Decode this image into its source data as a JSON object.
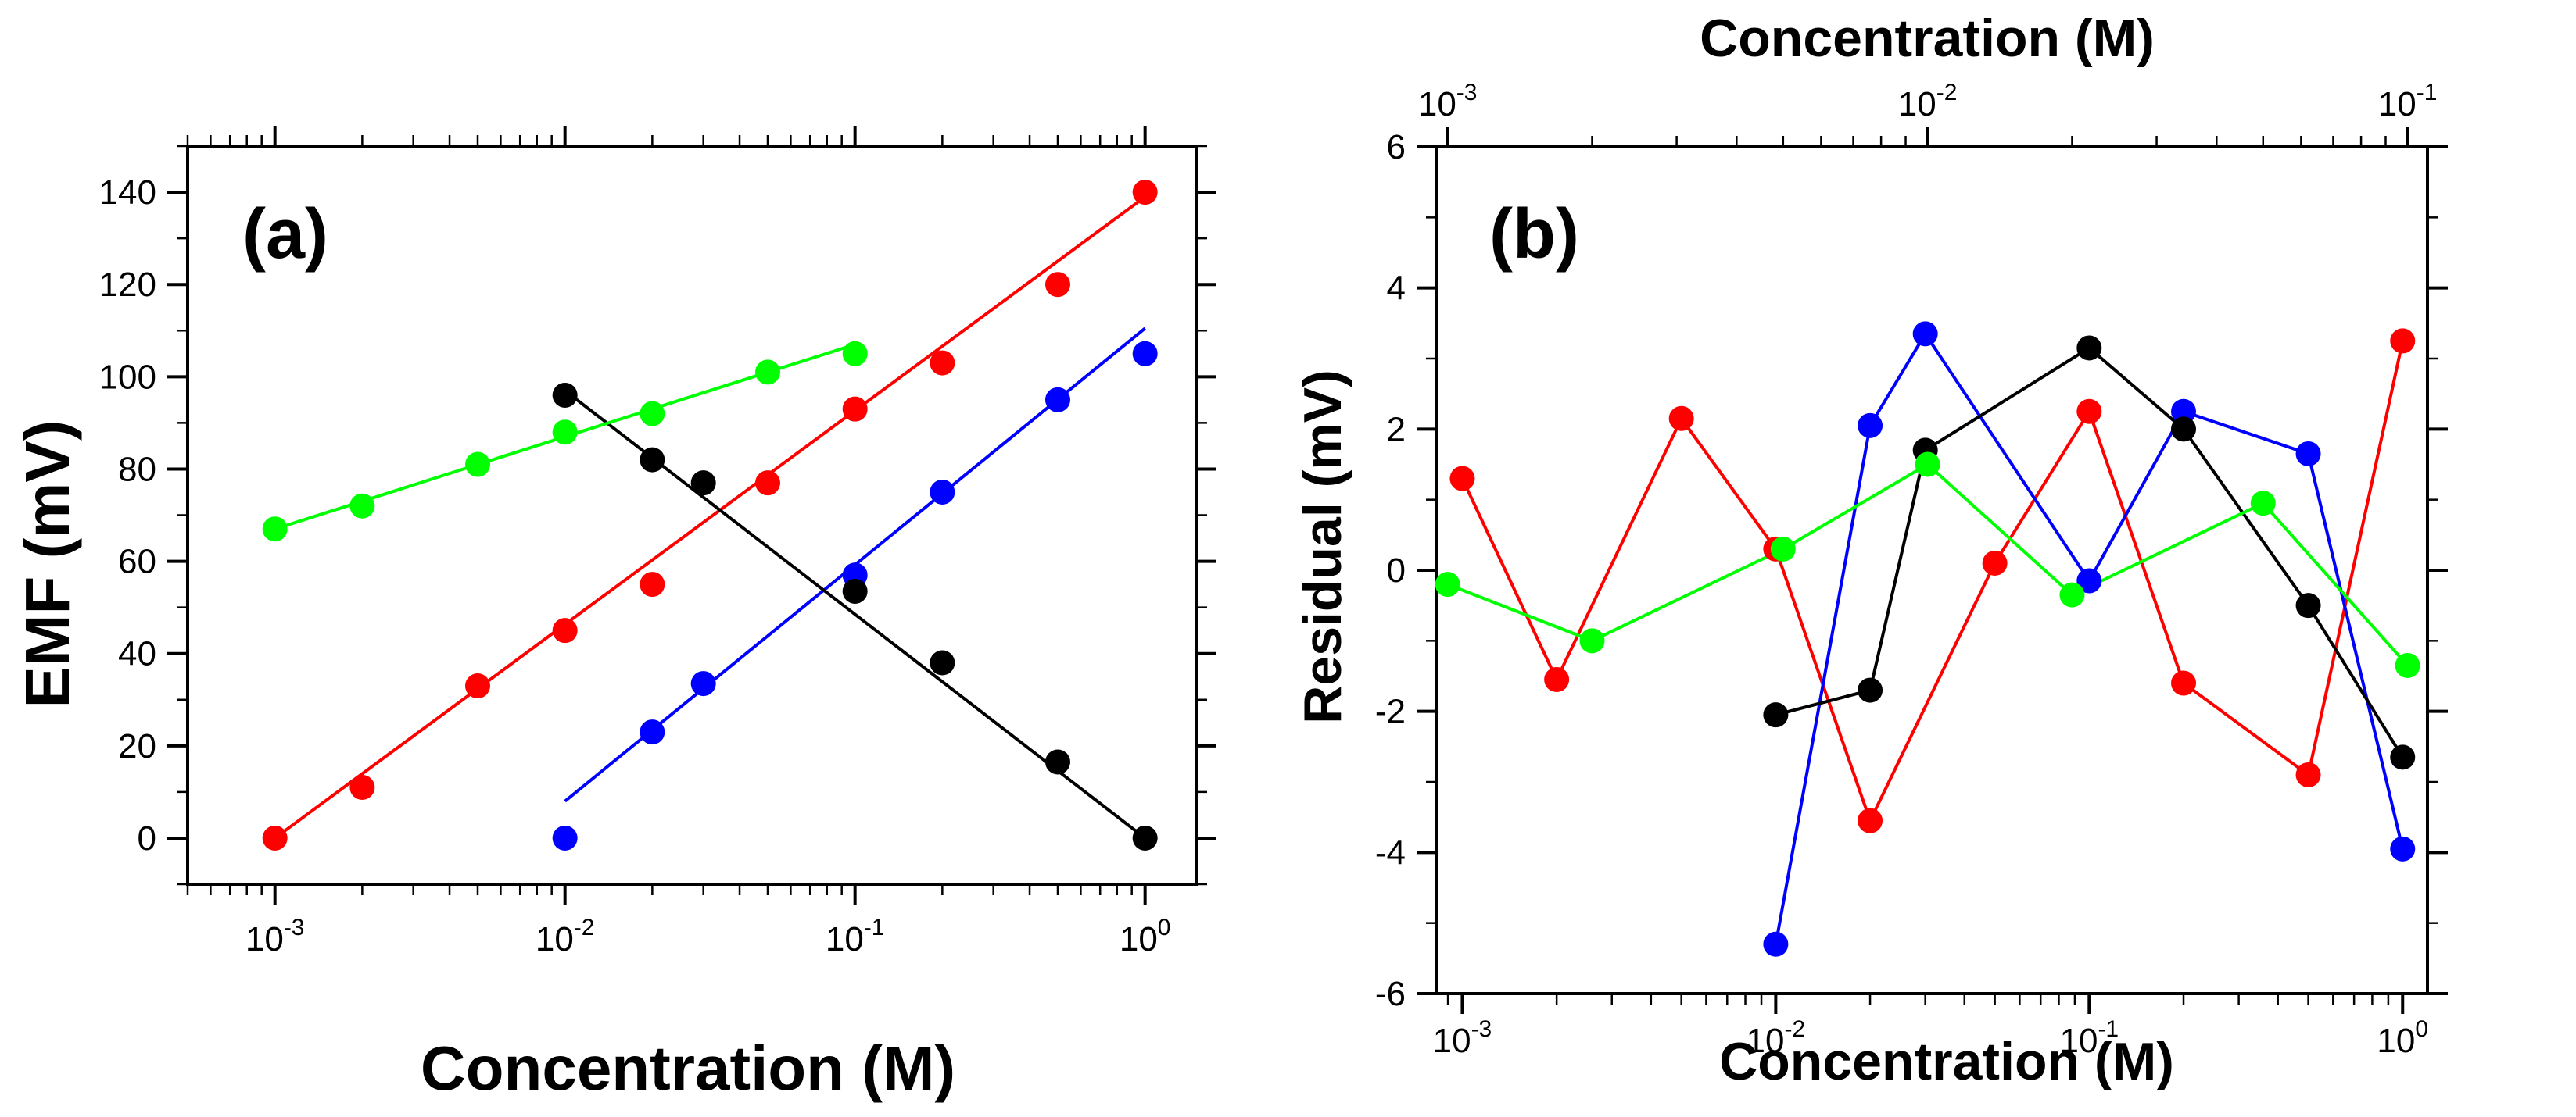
{
  "chart_data": [
    {
      "type": "scatter",
      "panel_label": "(a)",
      "title": "",
      "xlabel": "Concentration (M)",
      "ylabel": "EMF (mV)",
      "xscale": "log",
      "xlim": [
        0.0005,
        1.5
      ],
      "ylim": [
        -10,
        150
      ],
      "yticks": [
        0,
        20,
        40,
        60,
        80,
        100,
        120,
        140
      ],
      "xticks": [
        0.001,
        0.01,
        0.1,
        1
      ],
      "xtick_base": "10",
      "xtick_exponents": [
        "-3",
        "-2",
        "-1",
        "0"
      ],
      "series": [
        {
          "name": "red",
          "color": "#ff0000",
          "x": [
            0.001,
            0.002,
            0.005,
            0.01,
            0.02,
            0.05,
            0.1,
            0.2,
            0.5,
            1
          ],
          "y": [
            0,
            11,
            33,
            45,
            55,
            77,
            93,
            103,
            120,
            140
          ],
          "fit": {
            "x": [
              0.001,
              1
            ],
            "y": [
              0,
              139
            ]
          }
        },
        {
          "name": "blue",
          "color": "#0000ff",
          "x": [
            0.01,
            0.02,
            0.03,
            0.1,
            0.2,
            0.5,
            1
          ],
          "y": [
            0,
            23,
            33.5,
            57,
            75,
            95,
            105
          ],
          "fit": {
            "x": [
              0.01,
              1
            ],
            "y": [
              8,
              110.5
            ]
          }
        },
        {
          "name": "black",
          "color": "#000000",
          "x": [
            0.01,
            0.02,
            0.03,
            0.1,
            0.2,
            0.5,
            1
          ],
          "y": [
            96,
            82,
            77,
            53.5,
            38,
            16.5,
            0
          ],
          "fit": {
            "x": [
              0.01,
              1
            ],
            "y": [
              97,
              0
            ]
          }
        },
        {
          "name": "green",
          "color": "#00ff00",
          "x": [
            0.001,
            0.002,
            0.005,
            0.01,
            0.02,
            0.05,
            0.1
          ],
          "y": [
            67,
            72,
            81,
            88,
            92,
            101,
            105
          ],
          "fit": {
            "x": [
              0.001,
              0.1
            ],
            "y": [
              67,
              107
            ]
          }
        }
      ]
    },
    {
      "type": "line",
      "panel_label": "(b)",
      "title": "",
      "xlabel": "Concentration (M)",
      "x2label": "Concentration (M)",
      "ylabel": "Residual (mV)",
      "xscale": "log",
      "xlim": [
        0.00083,
        1.2
      ],
      "x2lim": [
        0.00095,
        0.11
      ],
      "ylim": [
        -6,
        6
      ],
      "yticks": [
        -6,
        -4,
        -2,
        0,
        2,
        4,
        6
      ],
      "xticks": [
        0.001,
        0.01,
        0.1,
        1
      ],
      "xtick_base": "10",
      "xtick_exponents": [
        "-3",
        "-2",
        "-1",
        "0"
      ],
      "x2ticks": [
        0.001,
        0.01,
        0.1
      ],
      "x2tick_exponents": [
        "-3",
        "-2",
        "-1"
      ],
      "series": [
        {
          "name": "red",
          "color": "#ff0000",
          "axis": "bottom",
          "x": [
            0.001,
            0.002,
            0.005,
            0.01,
            0.02,
            0.05,
            0.1,
            0.2,
            0.5,
            1
          ],
          "y": [
            1.3,
            -1.55,
            2.15,
            0.3,
            -3.55,
            0.1,
            2.25,
            -1.6,
            -2.9,
            3.25
          ]
        },
        {
          "name": "blue",
          "color": "#0000ff",
          "axis": "bottom",
          "x": [
            0.01,
            0.02,
            0.03,
            0.1,
            0.2,
            0.5,
            1
          ],
          "y": [
            -5.3,
            2.05,
            3.35,
            -0.15,
            2.25,
            1.65,
            -3.95
          ]
        },
        {
          "name": "black",
          "color": "#000000",
          "axis": "bottom",
          "x": [
            0.01,
            0.02,
            0.03,
            0.1,
            0.2,
            0.5,
            1
          ],
          "y": [
            -2.05,
            -1.7,
            1.7,
            3.15,
            2.0,
            -0.5,
            -2.65
          ]
        },
        {
          "name": "green",
          "color": "#00ff00",
          "axis": "top",
          "x": [
            0.001,
            0.002,
            0.005,
            0.01,
            0.02,
            0.05,
            0.1
          ],
          "y": [
            -0.2,
            -1.0,
            0.3,
            1.5,
            -0.35,
            0.95,
            -1.35
          ]
        }
      ]
    }
  ]
}
